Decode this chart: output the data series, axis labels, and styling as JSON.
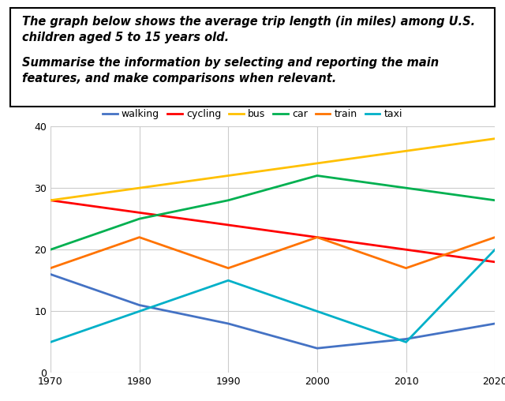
{
  "years": [
    1970,
    1980,
    1990,
    2000,
    2010,
    2020
  ],
  "series": {
    "walking": {
      "values": [
        16,
        11,
        8,
        4,
        5.5,
        8
      ],
      "color": "#4472C4"
    },
    "cycling": {
      "values": [
        28,
        26,
        24,
        22,
        20,
        18
      ],
      "color": "#FF0000"
    },
    "bus": {
      "values": [
        28,
        30,
        32,
        34,
        36,
        38
      ],
      "color": "#FFC000"
    },
    "car": {
      "values": [
        20,
        25,
        28,
        32,
        30,
        28
      ],
      "color": "#00B050"
    },
    "train": {
      "values": [
        17,
        22,
        17,
        22,
        17,
        22
      ],
      "color": "#FF7300"
    },
    "taxi": {
      "values": [
        5,
        10,
        15,
        10,
        5,
        20
      ],
      "color": "#00B0C8"
    }
  },
  "ylim": [
    0,
    40
  ],
  "xlim": [
    1970,
    2020
  ],
  "yticks": [
    0,
    10,
    20,
    30,
    40
  ],
  "xticks": [
    1970,
    1980,
    1990,
    2000,
    2010,
    2020
  ],
  "grid_color": "#CCCCCC",
  "legend_order": [
    "walking",
    "cycling",
    "bus",
    "car",
    "train",
    "taxi"
  ],
  "bg_color": "#FFFFFF",
  "text_line1": "The graph below shows the average trip length (in miles) among U.S.",
  "text_line2": "children aged 5 to 15 years old.",
  "text_line3": "Summarise the information by selecting and reporting the main",
  "text_line4": "features, and make comparisons when relevant.",
  "text_fontsize": 10.5,
  "legend_fontsize": 9,
  "tick_fontsize": 9
}
